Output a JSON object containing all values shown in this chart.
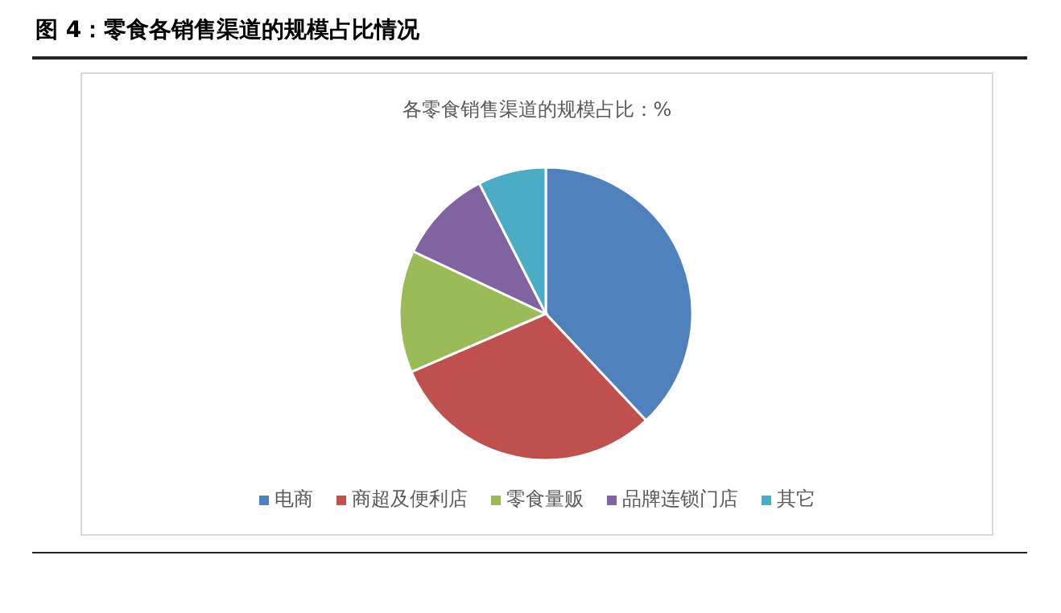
{
  "chart_data": {
    "type": "pie",
    "title": "图 4：零食各销售渠道的规模占比情况",
    "subtitle": "各零食销售渠道的规模占比：%",
    "categories": [
      "电商",
      "商超及便利店",
      "零食量贩",
      "品牌连锁门店",
      "其它"
    ],
    "values": [
      38,
      30.5,
      13.5,
      10.5,
      7.5
    ],
    "colors": [
      "#4f81bd",
      "#c0504d",
      "#9bbb59",
      "#8064a2",
      "#4bacc6"
    ],
    "legend": "bottom"
  }
}
